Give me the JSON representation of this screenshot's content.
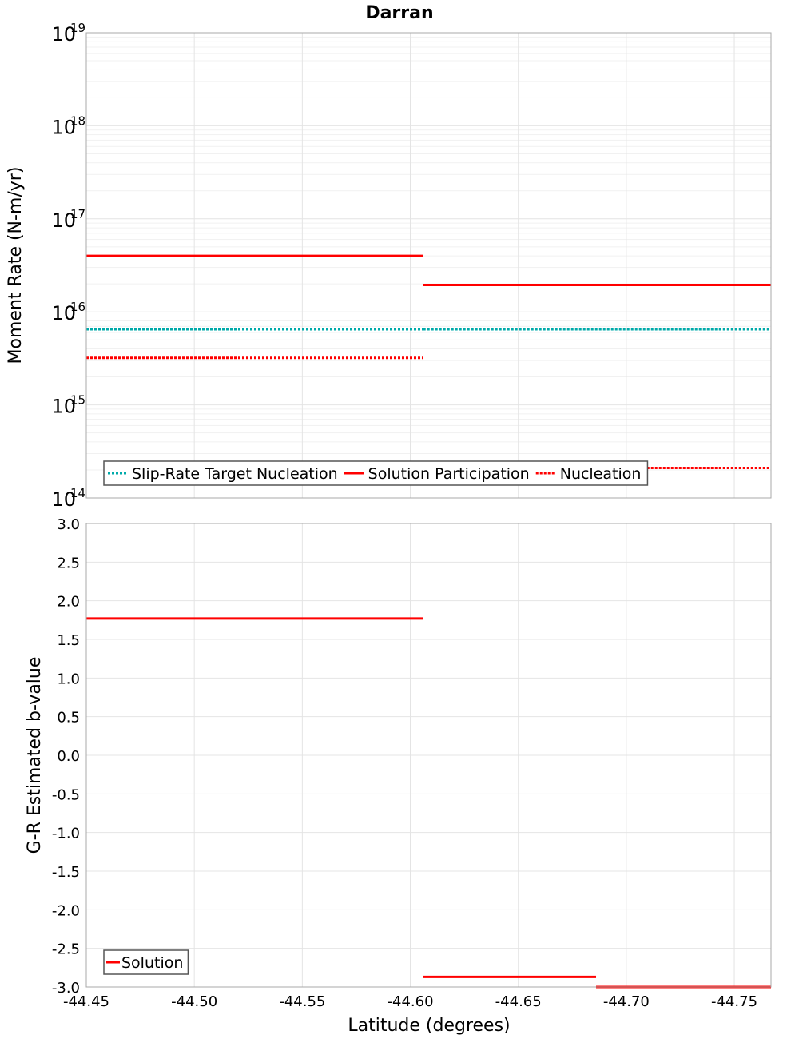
{
  "chart_data": [
    {
      "type": "line",
      "title": "Darran",
      "ylabel": "Moment Rate (N-m/yr)",
      "yscale": "log",
      "ylim_exp": [
        14,
        19
      ],
      "ytick_base": "10",
      "ytick_exponents": [
        "14",
        "15",
        "16",
        "17",
        "18",
        "19"
      ],
      "xlim": [
        -44.45,
        -44.767
      ],
      "legend": {
        "placement": "bottom-left",
        "entries": [
          {
            "label": "Slip-Rate Target Nucleation",
            "color": "#00aaaa",
            "style": "dotted"
          },
          {
            "label": "Solution Participation",
            "color": "#ff0000",
            "style": "solid"
          },
          {
            "label": "Nucleation",
            "color": "#ff0000",
            "style": "dotted"
          }
        ]
      },
      "series": [
        {
          "name": "Slip-Rate Target Nucleation",
          "color": "#00aaaa",
          "style": "dotted",
          "segments": [
            {
              "x": [
                -44.45,
                -44.606
              ],
              "y": 6500000000000000.0
            },
            {
              "x": [
                -44.606,
                -44.767
              ],
              "y": 6500000000000000.0
            }
          ]
        },
        {
          "name": "Solution Participation",
          "color": "#ff0000",
          "style": "solid",
          "segments": [
            {
              "x": [
                -44.45,
                -44.606
              ],
              "y": 4e+16
            },
            {
              "x": [
                -44.606,
                -44.767
              ],
              "y": 1.95e+16
            }
          ]
        },
        {
          "name": "Nucleation",
          "color": "#ff0000",
          "style": "dotted",
          "segments": [
            {
              "x": [
                -44.45,
                -44.606
              ],
              "y": 3200000000000000.0
            },
            {
              "x": [
                -44.606,
                -44.767
              ],
              "y": 210000000000000.0
            }
          ]
        }
      ]
    },
    {
      "type": "line",
      "title": "",
      "xlabel": "Latitude (degrees)",
      "ylabel": "G-R Estimated b-value",
      "xlim": [
        -44.45,
        -44.767
      ],
      "ylim": [
        -3.0,
        3.0
      ],
      "yticks": [
        "3.0",
        "2.5",
        "2.0",
        "1.5",
        "1.0",
        "0.5",
        "0.0",
        "-0.5",
        "-1.0",
        "-1.5",
        "-2.0",
        "-2.5",
        "-3.0"
      ],
      "xticks": [
        "-44.45",
        "-44.50",
        "-44.55",
        "-44.60",
        "-44.65",
        "-44.70",
        "-44.75"
      ],
      "legend": {
        "placement": "bottom-left",
        "entries": [
          {
            "label": "Solution",
            "color": "#ff0000",
            "style": "solid"
          }
        ]
      },
      "series": [
        {
          "name": "Solution",
          "color": "#ff0000",
          "style": "solid",
          "segments": [
            {
              "x": [
                -44.45,
                -44.606
              ],
              "y": 1.77
            },
            {
              "x": [
                -44.606,
                -44.686
              ],
              "y": -2.87
            },
            {
              "x": [
                -44.686,
                -44.767
              ],
              "y": -3.0
            }
          ]
        }
      ]
    }
  ]
}
